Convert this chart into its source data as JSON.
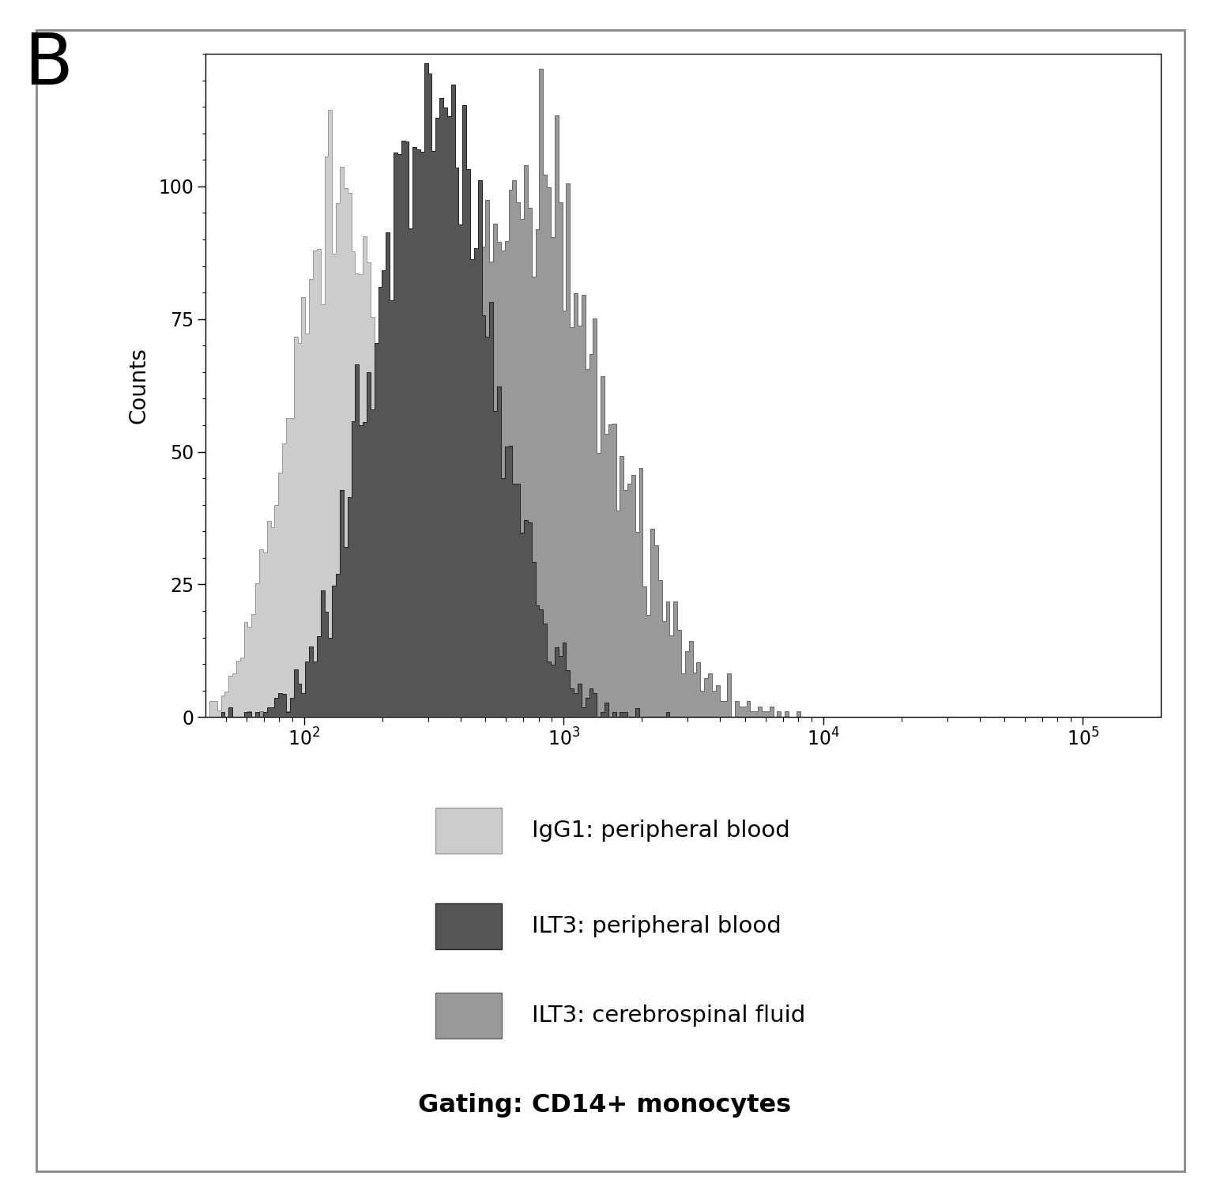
{
  "title": "B",
  "ylabel": "Counts",
  "ylim": [
    0,
    125
  ],
  "yticks": [
    0,
    25,
    50,
    75,
    100
  ],
  "xlog_min": 1.62,
  "xlog_max": 5.3,
  "color_igg1": "#cccccc",
  "color_ilt3_pb": "#555555",
  "color_ilt3_csf": "#999999",
  "edge_igg1": "#999999",
  "edge_ilt3_pb": "#222222",
  "edge_ilt3_csf": "#666666",
  "legend_labels": [
    "IgG1: peripheral blood",
    "ILT3: peripheral blood",
    "ILT3: cerebrospinal fluid",
    "Gating: CD14+ monocytes"
  ],
  "igg1_peak_log": 2.12,
  "igg1_sigma": 0.18,
  "igg1_scale": 110,
  "ilt3_pb_peak_log": 2.5,
  "ilt3_pb_sigma": 0.22,
  "ilt3_pb_scale": 120,
  "ilt3_csf_peak_log": 2.85,
  "ilt3_csf_sigma": 0.3,
  "ilt3_csf_scale": 118,
  "n_bins": 250,
  "n_samples": 5000,
  "noise_factor": 0.04
}
